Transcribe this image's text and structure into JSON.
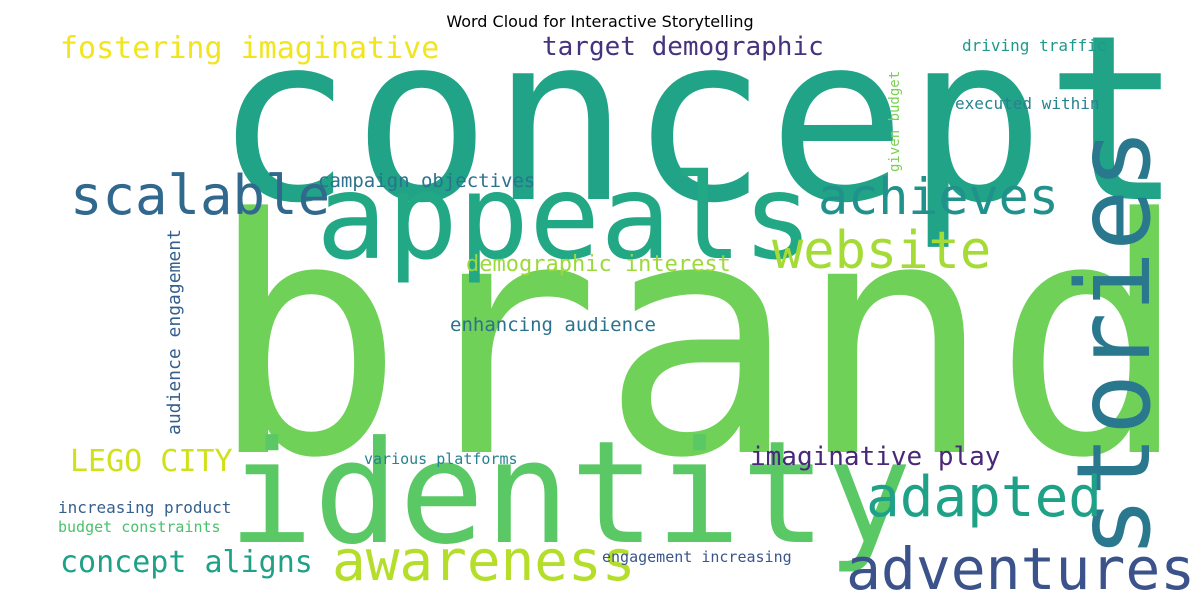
{
  "title": "Word Cloud for Interactive Storytelling",
  "words": {
    "brand": {
      "text": "brand",
      "color": "#6fd157"
    },
    "concept": {
      "text": "concept",
      "color": "#20a387"
    },
    "identity": {
      "text": "identity",
      "color": "#5ac864"
    },
    "stories": {
      "text": "stories",
      "color": "#2a788e"
    },
    "appeals": {
      "text": "appeals",
      "color": "#22a884"
    },
    "achieves": {
      "text": "achieves",
      "color": "#21918c"
    },
    "website": {
      "text": "website",
      "color": "#a5db36"
    },
    "adapted": {
      "text": "adapted",
      "color": "#1fa187"
    },
    "adventures": {
      "text": "adventures",
      "color": "#3b528b"
    },
    "awareness": {
      "text": "awareness",
      "color": "#b5de2b"
    },
    "scalable": {
      "text": "scalable",
      "color": "#31688e"
    },
    "fostering": {
      "text": "fostering imaginative",
      "color": "#f2e51d"
    },
    "target": {
      "text": "target demographic",
      "color": "#46337e"
    },
    "campaign": {
      "text": "campaign objectives",
      "color": "#2c728e"
    },
    "demographic": {
      "text": "demographic interest",
      "color": "#9dd93b"
    },
    "enhancing": {
      "text": "enhancing audience",
      "color": "#2c728e"
    },
    "audience": {
      "text": "audience engagement",
      "color": "#355f8d"
    },
    "lego": {
      "text": "LEGO CITY",
      "color": "#d0e11c"
    },
    "imaginative": {
      "text": "imaginative play",
      "color": "#482878"
    },
    "various": {
      "text": "various platforms",
      "color": "#26828e"
    },
    "increasing": {
      "text": "increasing product",
      "color": "#355f8d"
    },
    "budget": {
      "text": "budget constraints",
      "color": "#4ac16d"
    },
    "aligns": {
      "text": "concept aligns",
      "color": "#1fa187"
    },
    "engagement": {
      "text": "engagement increasing",
      "color": "#39568c"
    },
    "driving": {
      "text": "driving traffic",
      "color": "#1f9a8a"
    },
    "executed": {
      "text": "executed within",
      "color": "#26828e"
    },
    "given": {
      "text": "given budget",
      "color": "#7ad151"
    }
  }
}
